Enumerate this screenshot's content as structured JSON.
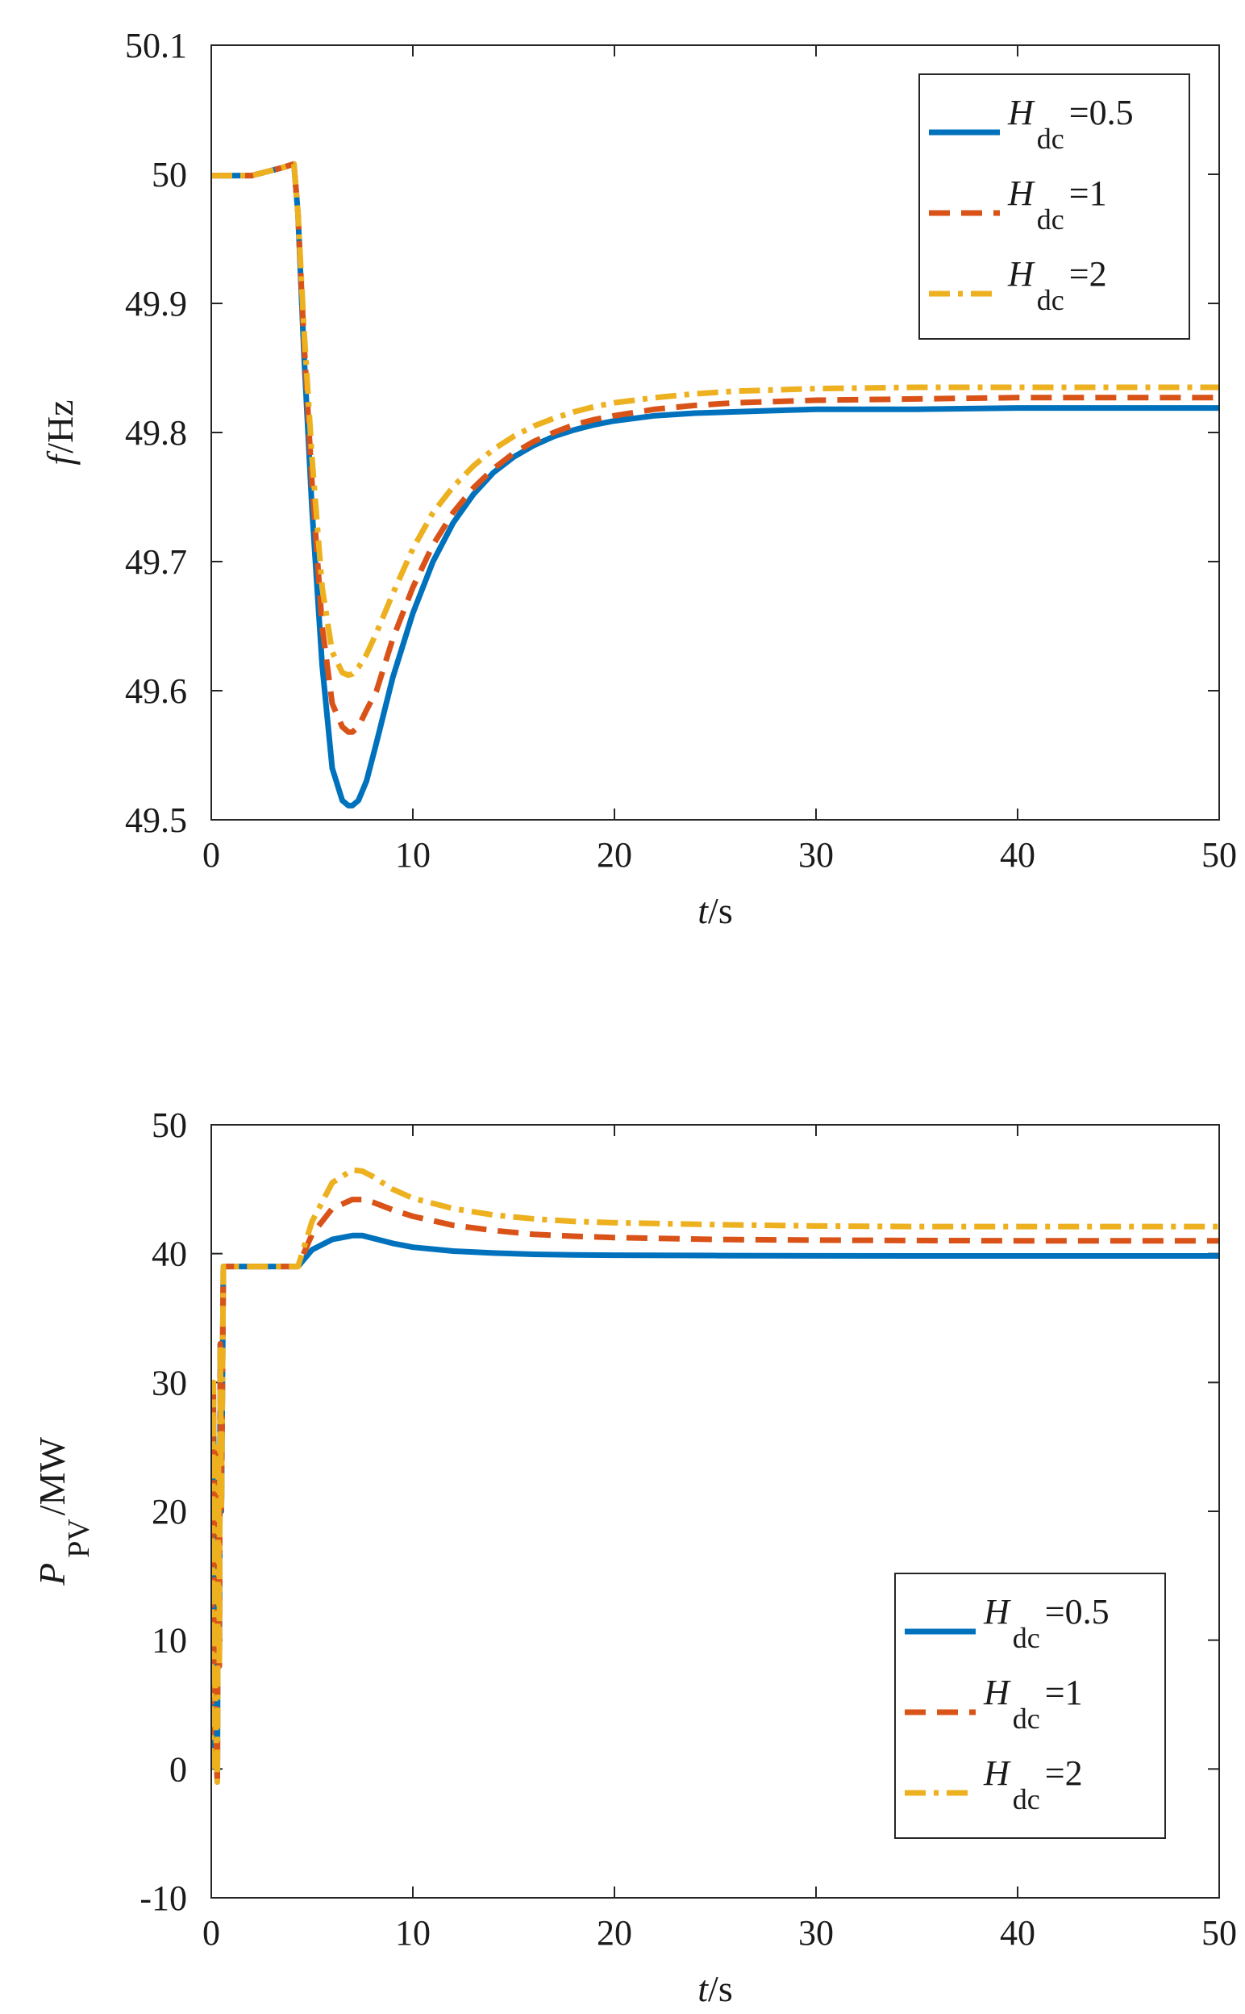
{
  "chart_data": [
    {
      "type": "line",
      "title": "",
      "xlabel": {
        "var": "t",
        "unit": "/s"
      },
      "ylabel": {
        "var": "f",
        "unit": "/Hz"
      },
      "xlim": [
        0,
        50
      ],
      "ylim": [
        49.5,
        50.1
      ],
      "xticks": [
        "0",
        "10",
        "20",
        "30",
        "40",
        "50"
      ],
      "yticks": [
        "50.1",
        "50",
        "49.9",
        "49.8",
        "49.7",
        "49.6",
        "49.5"
      ],
      "legend_position": "top-right",
      "series": [
        {
          "name": "Hdc=0.5",
          "legend": {
            "sym": "H",
            "sub": "dc",
            "val": "=0.5"
          },
          "color": "#0072BD",
          "style": "solid",
          "x": [
            0,
            1,
            2,
            3,
            3.5,
            4.1,
            4.3,
            4.6,
            5,
            5.5,
            6,
            6.5,
            6.8,
            7,
            7.3,
            7.7,
            8.2,
            9,
            10,
            11,
            12,
            13,
            14,
            15,
            16,
            17,
            18,
            19,
            20,
            22,
            24,
            26,
            28,
            30,
            35,
            40,
            45,
            50
          ],
          "y": [
            49.999,
            49.999,
            49.999,
            50.003,
            50.005,
            50.008,
            49.97,
            49.86,
            49.74,
            49.62,
            49.54,
            49.515,
            49.511,
            49.511,
            49.515,
            49.53,
            49.56,
            49.61,
            49.66,
            49.7,
            49.73,
            49.752,
            49.769,
            49.781,
            49.79,
            49.797,
            49.802,
            49.806,
            49.809,
            49.813,
            49.815,
            49.816,
            49.817,
            49.818,
            49.818,
            49.819,
            49.819,
            49.819
          ]
        },
        {
          "name": "Hdc=1",
          "legend": {
            "sym": "H",
            "sub": "dc",
            "val": "=1"
          },
          "color": "#D95319",
          "style": "dashed",
          "x": [
            0,
            1,
            2,
            3,
            3.5,
            4.1,
            4.3,
            4.6,
            5,
            5.5,
            6,
            6.5,
            6.8,
            7,
            7.3,
            7.7,
            8.2,
            9,
            10,
            11,
            12,
            13,
            14,
            15,
            16,
            17,
            18,
            19,
            20,
            22,
            24,
            26,
            28,
            30,
            35,
            40,
            45,
            50
          ],
          "y": [
            49.999,
            49.999,
            49.999,
            50.003,
            50.005,
            50.008,
            49.97,
            49.87,
            49.76,
            49.65,
            49.59,
            49.572,
            49.568,
            49.568,
            49.572,
            49.585,
            49.6,
            49.64,
            49.68,
            49.713,
            49.738,
            49.757,
            49.772,
            49.784,
            49.793,
            49.8,
            49.806,
            49.81,
            49.813,
            49.818,
            49.821,
            49.823,
            49.824,
            49.825,
            49.826,
            49.827,
            49.827,
            49.827
          ]
        },
        {
          "name": "Hdc=2",
          "legend": {
            "sym": "H",
            "sub": "dc",
            "val": "=2"
          },
          "color": "#EDB120",
          "style": "dashdot",
          "x": [
            0,
            1,
            2,
            3,
            3.5,
            4.1,
            4.3,
            4.6,
            5,
            5.5,
            6,
            6.5,
            6.8,
            7,
            7.3,
            7.7,
            8.2,
            9,
            10,
            11,
            12,
            13,
            14,
            15,
            16,
            17,
            18,
            19,
            20,
            22,
            24,
            26,
            28,
            30,
            35,
            40,
            45,
            50
          ],
          "y": [
            49.999,
            49.999,
            49.999,
            50.003,
            50.005,
            50.008,
            49.97,
            49.88,
            49.78,
            49.68,
            49.63,
            49.614,
            49.612,
            49.613,
            49.618,
            49.628,
            49.645,
            49.675,
            49.71,
            49.738,
            49.758,
            49.774,
            49.787,
            49.797,
            49.805,
            49.811,
            49.816,
            49.82,
            49.823,
            49.827,
            49.83,
            49.832,
            49.833,
            49.834,
            49.835,
            49.835,
            49.835,
            49.835
          ]
        }
      ]
    },
    {
      "type": "line",
      "title": "",
      "xlabel": {
        "var": "t",
        "unit": "/s"
      },
      "ylabel": {
        "var": "P",
        "sub": "PV",
        "unit": "/MW"
      },
      "xlim": [
        0,
        50
      ],
      "ylim": [
        -10,
        50
      ],
      "xticks": [
        "0",
        "10",
        "20",
        "30",
        "40",
        "50"
      ],
      "yticks": [
        "50",
        "40",
        "30",
        "20",
        "10",
        "0",
        "-10"
      ],
      "legend_position": "bottom-right",
      "series": [
        {
          "name": "Hdc=0.5",
          "legend": {
            "sym": "H",
            "sub": "dc",
            "val": "=0.5"
          },
          "color": "#0072BD",
          "style": "solid",
          "x": [
            0,
            0.1,
            0.2,
            0.3,
            0.35,
            0.4,
            0.45,
            0.5,
            0.6,
            1,
            2,
            3,
            4,
            4.3,
            5,
            6,
            7,
            7.5,
            8,
            9,
            10,
            12,
            14,
            16,
            18,
            20,
            25,
            30,
            35,
            40,
            45,
            50
          ],
          "y": [
            0,
            30,
            5,
            -1,
            25,
            8,
            33,
            20,
            39,
            39,
            39,
            39,
            39,
            39,
            40.3,
            41.1,
            41.4,
            41.4,
            41.2,
            40.8,
            40.5,
            40.2,
            40.05,
            39.95,
            39.9,
            39.88,
            39.85,
            39.83,
            39.82,
            39.82,
            39.82,
            39.82
          ]
        },
        {
          "name": "Hdc=1",
          "legend": {
            "sym": "H",
            "sub": "dc",
            "val": "=1"
          },
          "color": "#D95319",
          "style": "dashed",
          "x": [
            0,
            0.1,
            0.2,
            0.3,
            0.35,
            0.4,
            0.45,
            0.5,
            0.6,
            1,
            2,
            3,
            4,
            4.3,
            5,
            6,
            7,
            7.5,
            8,
            9,
            10,
            12,
            14,
            16,
            18,
            20,
            25,
            30,
            35,
            40,
            45,
            50
          ],
          "y": [
            0,
            30,
            5,
            -1,
            25,
            8,
            33,
            20,
            39,
            39,
            39,
            39,
            39,
            39,
            41.5,
            43.5,
            44.2,
            44.2,
            44.0,
            43.4,
            42.9,
            42.2,
            41.8,
            41.5,
            41.35,
            41.25,
            41.1,
            41.05,
            41.02,
            41.0,
            41.0,
            41.0
          ]
        },
        {
          "name": "Hdc=2",
          "legend": {
            "sym": "H",
            "sub": "dc",
            "val": "=2"
          },
          "color": "#EDB120",
          "style": "dashdot",
          "x": [
            0,
            0.1,
            0.2,
            0.3,
            0.35,
            0.4,
            0.45,
            0.5,
            0.6,
            1,
            2,
            3,
            4,
            4.3,
            5,
            6,
            7,
            7.5,
            8,
            9,
            10,
            12,
            14,
            16,
            18,
            20,
            25,
            30,
            35,
            40,
            45,
            50
          ],
          "y": [
            0,
            30,
            5,
            -1,
            25,
            8,
            33,
            20,
            39,
            39,
            39,
            39,
            39,
            39,
            42.5,
            45.5,
            46.5,
            46.4,
            46.0,
            45.0,
            44.3,
            43.5,
            43.0,
            42.7,
            42.5,
            42.4,
            42.25,
            42.15,
            42.1,
            42.1,
            42.1,
            42.1
          ]
        }
      ]
    }
  ]
}
